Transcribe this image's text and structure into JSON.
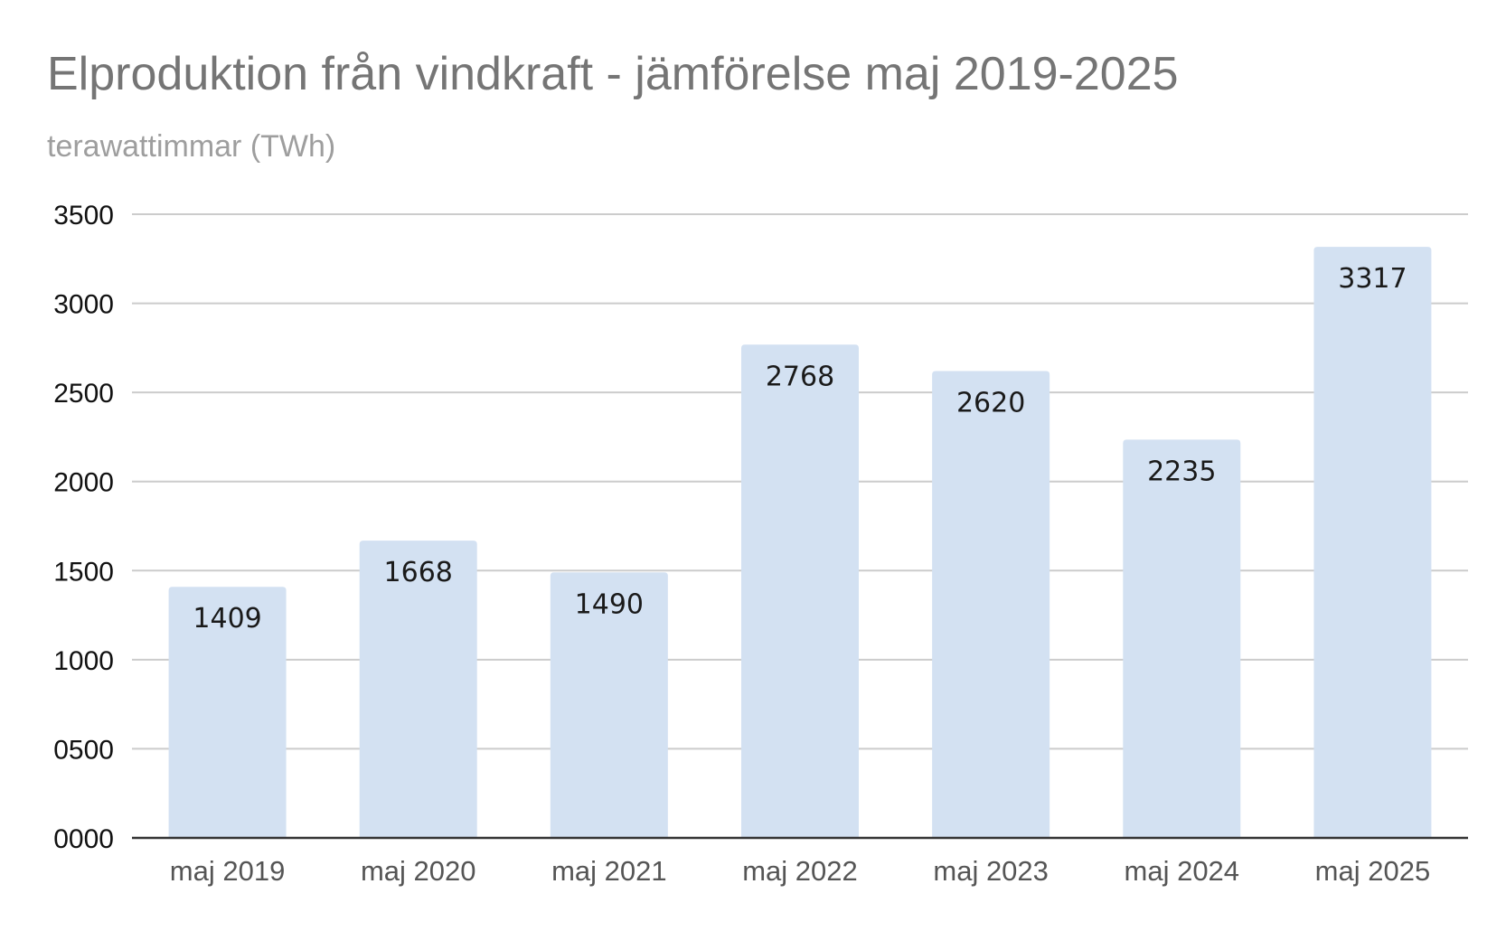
{
  "chart_data": {
    "type": "bar",
    "title": "Elproduktion från vindkraft - jämförelse maj 2019-2025",
    "subtitle": "terawattimmar (TWh)",
    "categories": [
      "maj 2019",
      "maj 2020",
      "maj 2021",
      "maj 2022",
      "maj 2023",
      "maj 2024",
      "maj 2025"
    ],
    "values": [
      1409,
      1668,
      1490,
      2768,
      2620,
      2235,
      3317
    ],
    "data_labels": [
      "1409",
      "1668",
      "1490",
      "2768",
      "2620",
      "2235",
      "3317"
    ],
    "y_ticks": [
      "0000",
      "0500",
      "1000",
      "1500",
      "2000",
      "2500",
      "3000",
      "3500"
    ],
    "y_tick_values": [
      0,
      500,
      1000,
      1500,
      2000,
      2500,
      3000,
      3500
    ],
    "ylim": [
      0,
      3500
    ],
    "grid": true,
    "legend": "none",
    "colors": {
      "bar": "#d3e1f2",
      "grid": "#cccccc",
      "axis": "#333333"
    }
  }
}
